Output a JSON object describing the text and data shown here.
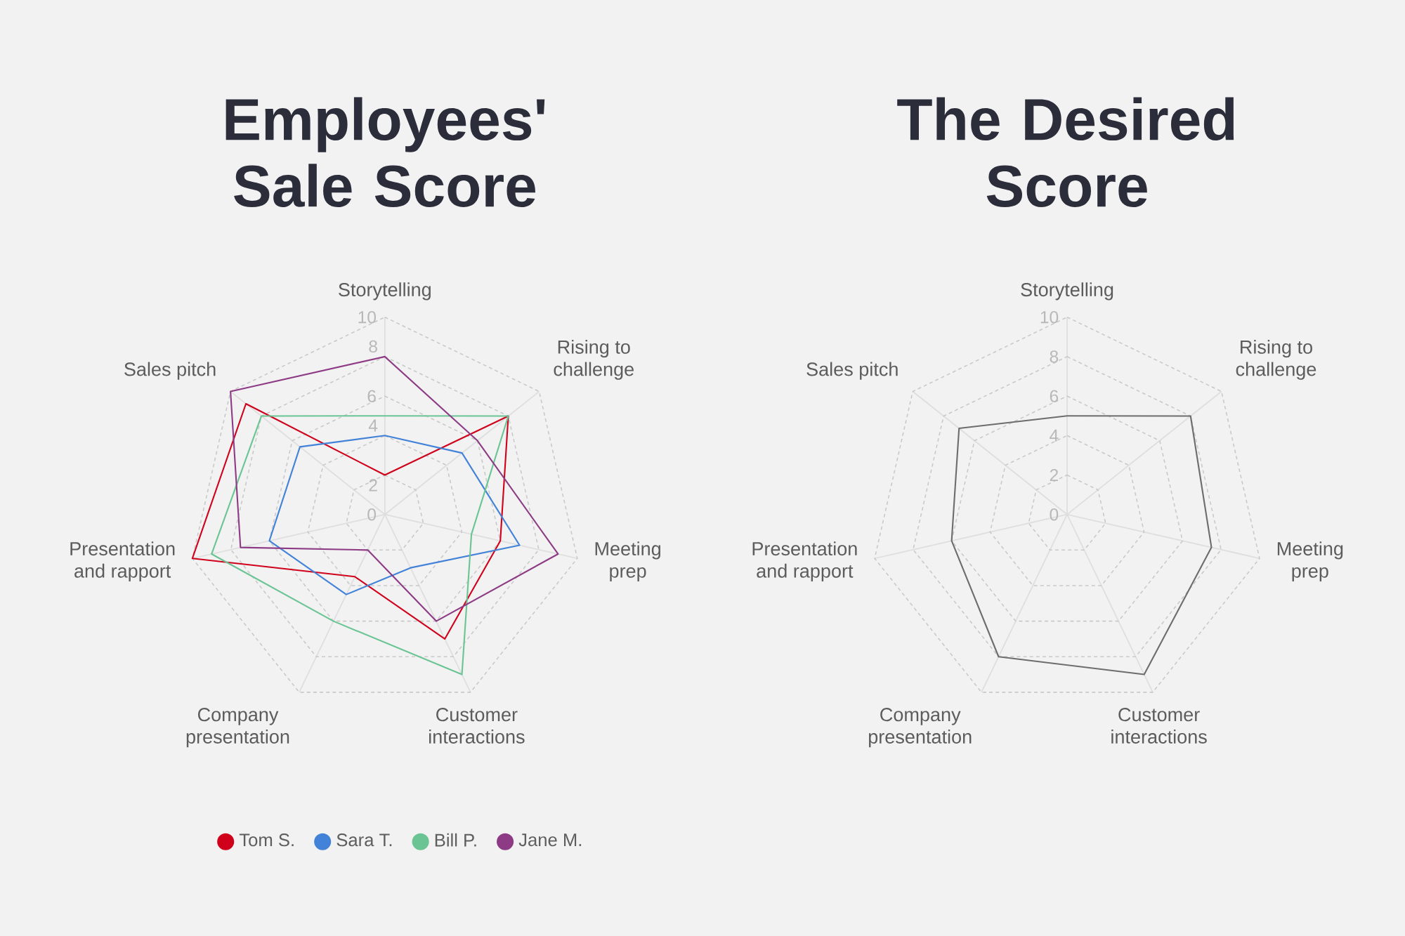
{
  "chart_data": [
    {
      "type": "radar",
      "title": "Employees' Sale Score",
      "categories": [
        "Storytelling",
        "Rising to challenge",
        "Meeting prep",
        "Customer interactions",
        "Company presentation",
        "Presentation and rapport",
        "Sales pitch"
      ],
      "series": [
        {
          "name": "Tom S.",
          "color": "#d0021b",
          "values": [
            2,
            8,
            6,
            7,
            3.5,
            10,
            9
          ]
        },
        {
          "name": "Sara T.",
          "color": "#4282d8",
          "values": [
            4,
            5,
            7,
            3,
            4.5,
            6,
            5.5
          ]
        },
        {
          "name": "Bill P.",
          "color": "#6bc494",
          "values": [
            5,
            8,
            4.5,
            9,
            6,
            9,
            8
          ]
        },
        {
          "name": "Jane M.",
          "color": "#8e3b86",
          "values": [
            8,
            6,
            9,
            6,
            2,
            7.5,
            10
          ]
        }
      ],
      "ylim": [
        0,
        10
      ],
      "yticks": [
        0,
        2,
        4,
        6,
        8,
        10
      ],
      "grid": true,
      "legend": "bottom",
      "line_style": "solid"
    },
    {
      "type": "radar",
      "title": "The Desired Score",
      "categories": [
        "Storytelling",
        "Rising to challenge",
        "Meeting prep",
        "Customer interactions",
        "Company presentation",
        "Presentation and rapport",
        "Sales pitch"
      ],
      "series": [
        {
          "color": "#6d6d6d",
          "values": [
            5,
            8,
            7.5,
            9,
            8,
            6,
            7
          ]
        }
      ],
      "ylim": [
        0,
        10
      ],
      "yticks": [
        0,
        2,
        4,
        6,
        8,
        10
      ],
      "grid": true,
      "line_style": "solid"
    }
  ]
}
